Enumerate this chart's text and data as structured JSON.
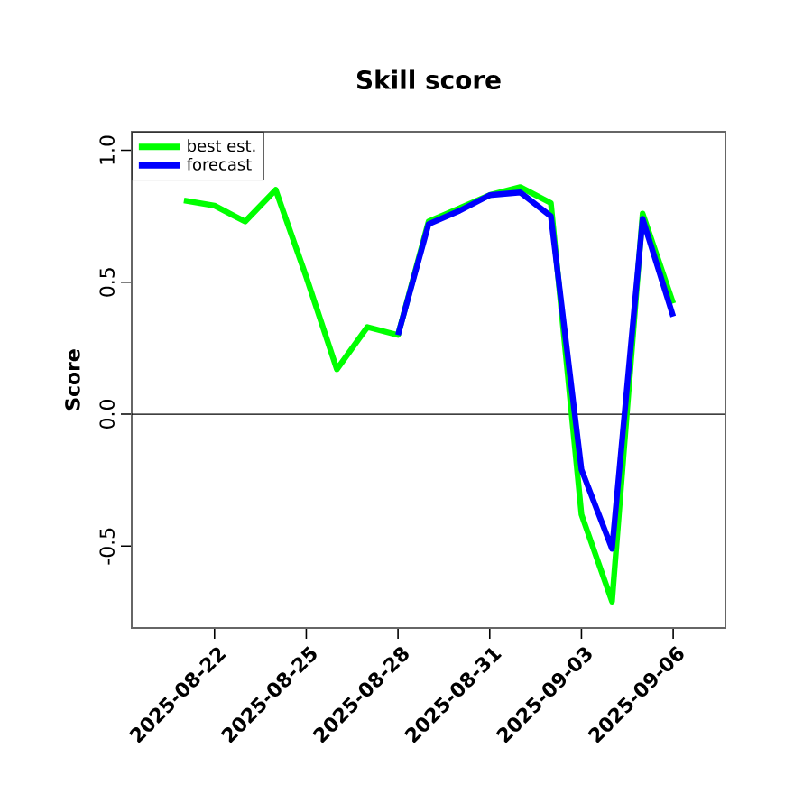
{
  "chart_data": {
    "type": "line",
    "title": "Skill score",
    "ylabel": "Score",
    "x": [
      "2025-08-21",
      "2025-08-22",
      "2025-08-23",
      "2025-08-24",
      "2025-08-25",
      "2025-08-26",
      "2025-08-27",
      "2025-08-28",
      "2025-08-29",
      "2025-08-30",
      "2025-08-31",
      "2025-09-01",
      "2025-09-02",
      "2025-09-03",
      "2025-09-04",
      "2025-09-05",
      "2025-09-06"
    ],
    "series": [
      {
        "name": "best est.",
        "color": "#00ff00",
        "values": [
          0.81,
          0.79,
          0.73,
          0.85,
          0.52,
          0.17,
          0.33,
          0.3,
          0.73,
          0.78,
          0.83,
          0.86,
          0.8,
          -0.38,
          -0.71,
          0.76,
          0.42
        ]
      },
      {
        "name": "forecast",
        "color": "#0000ff",
        "values": [
          null,
          null,
          null,
          null,
          null,
          null,
          null,
          0.3,
          0.72,
          0.77,
          0.83,
          0.84,
          0.75,
          -0.21,
          -0.51,
          0.74,
          0.37
        ]
      }
    ],
    "xlim": [
      "2025-08-19T07:00",
      "2025-09-07T17:00"
    ],
    "xticks": [
      "2025-08-22",
      "2025-08-25",
      "2025-08-28",
      "2025-08-31",
      "2025-09-03",
      "2025-09-06"
    ],
    "ylim": [
      -0.81,
      1.07
    ],
    "yticks": [
      {
        "value": -0.5,
        "label": "-0.5"
      },
      {
        "value": 0,
        "label": "0.0"
      },
      {
        "value": 0.5,
        "label": "0.5"
      },
      {
        "value": 1,
        "label": "1.0"
      }
    ],
    "ref_lines": [
      {
        "axis": "y",
        "value": 0,
        "color": "#000000"
      }
    ],
    "legend": "top left",
    "grid": false,
    "marker": "none",
    "line_style": "solid"
  }
}
